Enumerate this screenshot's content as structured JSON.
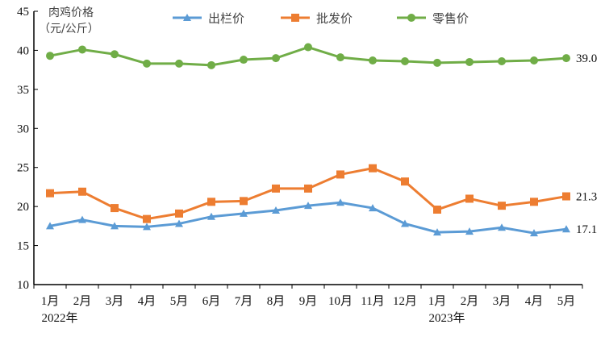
{
  "chart_data": {
    "type": "line",
    "ylabel_line1": "肉鸡价格",
    "ylabel_line2": "（元/公斤）",
    "ylim": [
      10,
      45
    ],
    "yticks": [
      "10",
      "15",
      "20",
      "25",
      "30",
      "35",
      "40",
      "45"
    ],
    "categories": [
      "1月",
      "2月",
      "3月",
      "4月",
      "5月",
      "6月",
      "7月",
      "8月",
      "9月",
      "10月",
      "11月",
      "12月",
      "1月",
      "2月",
      "3月",
      "4月",
      "5月"
    ],
    "year_labels": [
      "2022年",
      "2023年"
    ],
    "legend_position": "top",
    "grid": false,
    "series": [
      {
        "name": "出栏价",
        "color": "#5b9bd5",
        "marker": "triangle",
        "values": [
          17.5,
          18.3,
          17.5,
          17.4,
          17.8,
          18.7,
          19.1,
          19.5,
          20.1,
          20.5,
          19.8,
          17.8,
          16.7,
          16.8,
          17.3,
          16.6,
          17.1
        ],
        "end_label": "17.1"
      },
      {
        "name": "批发价",
        "color": "#ed7d31",
        "marker": "square",
        "values": [
          21.7,
          21.9,
          19.8,
          18.4,
          19.1,
          20.6,
          20.7,
          22.3,
          22.3,
          24.1,
          24.9,
          23.2,
          19.6,
          21.0,
          20.1,
          20.6,
          21.3
        ],
        "end_label": "21.3"
      },
      {
        "name": "零售价",
        "color": "#70ad47",
        "marker": "circle",
        "values": [
          39.3,
          40.1,
          39.5,
          38.3,
          38.3,
          38.1,
          38.8,
          39.0,
          40.4,
          39.1,
          38.7,
          38.6,
          38.4,
          38.5,
          38.6,
          38.7,
          39.0
        ],
        "end_label": "39.0"
      }
    ]
  }
}
